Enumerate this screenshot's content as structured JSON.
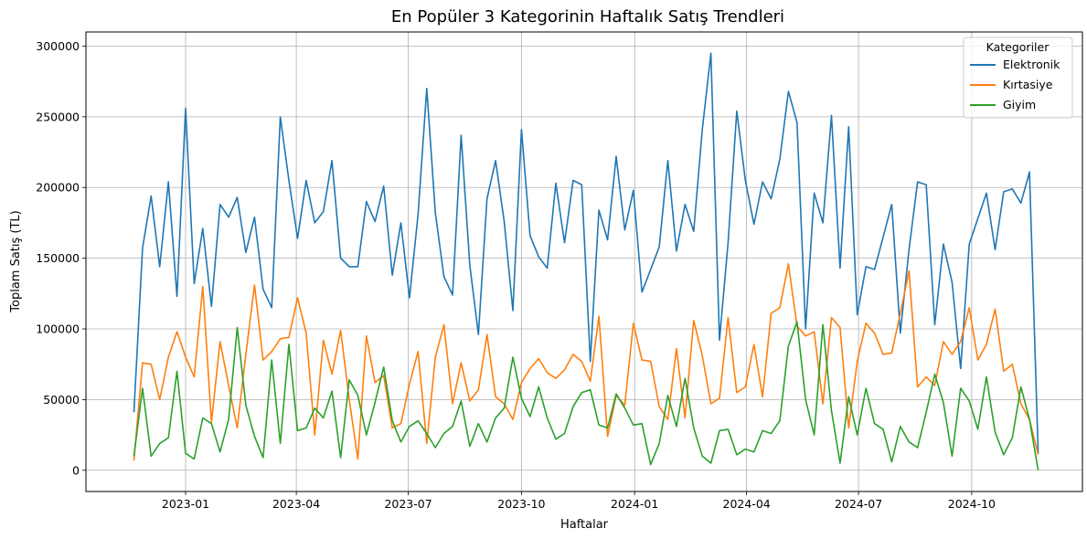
{
  "chart_data": {
    "type": "line",
    "title": "En Popüler 3 Kategorinin Haftalık Satış Trendleri",
    "xlabel": "Haftalar",
    "ylabel": "Toplam Satış (TL)",
    "x_start": "2022-11-20",
    "x_step_days": 7,
    "x_ticks": [
      "2023-01",
      "2023-04",
      "2023-07",
      "2023-10",
      "2024-01",
      "2024-04",
      "2024-07",
      "2024-10"
    ],
    "y_ticks": [
      0,
      50000,
      100000,
      150000,
      200000,
      250000,
      300000
    ],
    "ylim": [
      -15000,
      310000
    ],
    "grid": true,
    "legend": {
      "title": "Kategoriler",
      "position": "top-right"
    },
    "series": [
      {
        "name": "Elektronik",
        "color": "#1f77b4",
        "values": [
          41000,
          157000,
          194000,
          144000,
          204000,
          123000,
          256000,
          132000,
          171000,
          116000,
          188000,
          179000,
          193000,
          154000,
          179000,
          128000,
          115000,
          250000,
          205000,
          164000,
          205000,
          175000,
          183000,
          219000,
          150000,
          144000,
          144000,
          190000,
          176000,
          201000,
          138000,
          175000,
          122000,
          181000,
          270000,
          182000,
          137000,
          124000,
          237000,
          145000,
          96000,
          192000,
          219000,
          176000,
          113000,
          241000,
          166000,
          151000,
          143000,
          203000,
          161000,
          205000,
          202000,
          77000,
          184000,
          163000,
          222000,
          170000,
          198000,
          126000,
          142000,
          158000,
          219000,
          155000,
          188000,
          169000,
          241000,
          295000,
          92000,
          161000,
          254000,
          205000,
          174000,
          204000,
          192000,
          220000,
          268000,
          246000,
          100000,
          196000,
          175000,
          251000,
          143000,
          243000,
          110000,
          144000,
          142000,
          165000,
          188000,
          97000,
          156000,
          204000,
          202000,
          103000,
          160000,
          133000,
          72000,
          160000,
          178000,
          196000,
          156000,
          197000,
          199000,
          189000,
          211000,
          12000
        ]
      },
      {
        "name": "Kırtasiye",
        "color": "#ff7f0e",
        "values": [
          7000,
          76000,
          75000,
          50000,
          80000,
          98000,
          80000,
          66000,
          130000,
          34000,
          91000,
          60000,
          30000,
          82000,
          131000,
          78000,
          84000,
          93000,
          94000,
          122000,
          97000,
          25000,
          92000,
          68000,
          99000,
          50000,
          8000,
          95000,
          62000,
          67000,
          30000,
          33000,
          61000,
          84000,
          19000,
          80000,
          103000,
          47000,
          76000,
          49000,
          57000,
          96000,
          52000,
          47000,
          36000,
          62000,
          72000,
          79000,
          69000,
          65000,
          71000,
          82000,
          77000,
          63000,
          109000,
          24000,
          53000,
          46000,
          104000,
          78000,
          77000,
          45000,
          36000,
          86000,
          37000,
          106000,
          81000,
          47000,
          51000,
          108000,
          55000,
          59000,
          89000,
          52000,
          111000,
          115000,
          146000,
          102000,
          95000,
          98000,
          47000,
          108000,
          101000,
          30000,
          77000,
          104000,
          97000,
          82000,
          83000,
          111000,
          141000,
          59000,
          66000,
          60000,
          91000,
          82000,
          91000,
          115000,
          78000,
          89000,
          114000,
          70000,
          75000,
          47000,
          36000,
          11000
        ]
      },
      {
        "name": "Giyim",
        "color": "#2ca02c",
        "values": [
          10000,
          58000,
          10000,
          19000,
          23000,
          70000,
          12000,
          8000,
          37000,
          33000,
          13000,
          36000,
          101000,
          46000,
          24000,
          9000,
          78000,
          19000,
          89000,
          28000,
          30000,
          44000,
          37000,
          56000,
          9000,
          64000,
          53000,
          25000,
          48000,
          73000,
          35000,
          20000,
          31000,
          35000,
          26000,
          16000,
          26000,
          31000,
          49000,
          17000,
          33000,
          20000,
          37000,
          44000,
          80000,
          51000,
          38000,
          59000,
          37000,
          22000,
          26000,
          45000,
          55000,
          57000,
          32000,
          30000,
          54000,
          44000,
          32000,
          33000,
          4000,
          19000,
          53000,
          31000,
          65000,
          30000,
          10000,
          5000,
          28000,
          29000,
          11000,
          15000,
          13000,
          28000,
          26000,
          35000,
          88000,
          105000,
          50000,
          25000,
          103000,
          42000,
          5000,
          52000,
          25000,
          58000,
          33000,
          29000,
          6000,
          31000,
          20000,
          16000,
          41000,
          68000,
          48000,
          10000,
          58000,
          49000,
          29000,
          66000,
          27000,
          11000,
          23000,
          59000,
          36000,
          0
        ]
      }
    ]
  }
}
